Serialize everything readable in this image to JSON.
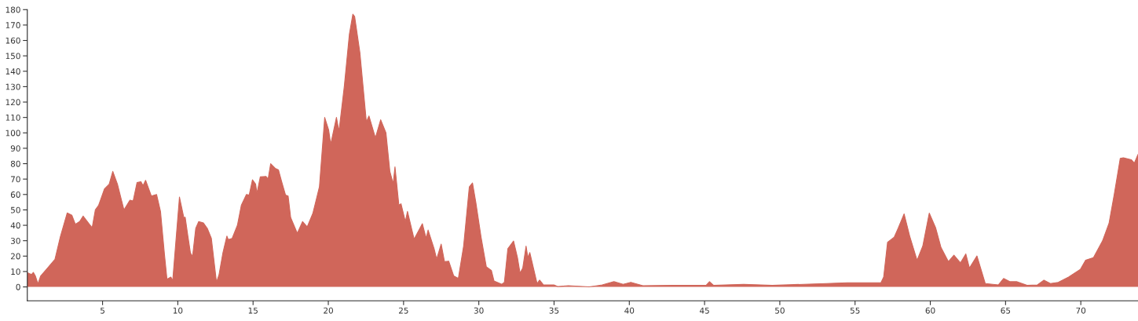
{
  "chart_data": {
    "type": "area",
    "x": [
      0,
      0.28,
      0.4,
      0.54,
      0.71,
      0.88,
      1.32,
      1.84,
      2.18,
      2.65,
      2.96,
      3.19,
      3.48,
      3.71,
      4.12,
      4.31,
      4.52,
      4.74,
      5.13,
      5.44,
      5.68,
      5.99,
      6.42,
      6.82,
      7.03,
      7.29,
      7.55,
      7.69,
      7.86,
      8.24,
      8.59,
      8.85,
      9.11,
      9.28,
      9.54,
      9.66,
      10.11,
      10.4,
      10.49,
      10.67,
      10.84,
      10.98,
      11.19,
      11.39,
      11.7,
      11.96,
      12.23,
      12.57,
      12.74,
      13.0,
      13.26,
      13.35,
      13.61,
      13.96,
      14.22,
      14.56,
      14.74,
      14.96,
      15.17,
      15.26,
      15.48,
      15.86,
      16.0,
      16.17,
      16.47,
      16.69,
      16.9,
      17.16,
      17.33,
      17.5,
      17.94,
      18.29,
      18.6,
      18.98,
      19.41,
      19.76,
      20.02,
      20.16,
      20.54,
      20.71,
      21.06,
      21.4,
      21.63,
      21.75,
      22.1,
      22.53,
      22.7,
      23.13,
      23.48,
      23.83,
      24.09,
      24.31,
      24.43,
      24.69,
      24.83,
      25.12,
      25.26,
      25.7,
      26.25,
      26.5,
      26.63,
      27.03,
      27.2,
      27.5,
      27.72,
      28.0,
      28.33,
      28.64,
      28.99,
      29.37,
      29.58,
      29.8,
      30.15,
      30.5,
      30.84,
      31.01,
      31.53,
      31.7,
      31.93,
      32.31,
      32.57,
      32.74,
      32.92,
      33.14,
      33.26,
      33.39,
      33.87,
      34.04,
      34.3,
      34.99,
      35.26,
      35.95,
      37.33,
      38.2,
      38.98,
      39.59,
      40.1,
      40.9,
      42.9,
      45.1,
      45.33,
      45.6,
      47.6,
      49.5,
      53.1,
      54.47,
      56.72,
      56.9,
      57.16,
      57.6,
      57.86,
      58.26,
      58.63,
      59.12,
      59.5,
      59.93,
      60.36,
      60.71,
      61.2,
      61.57,
      62.0,
      62.36,
      62.6,
      63.1,
      63.65,
      64.52,
      64.87,
      65.3,
      65.73,
      66.43,
      67.12,
      67.55,
      67.98,
      68.5,
      69.19,
      69.97,
      70.32,
      70.84,
      71.44,
      71.88,
      72.22,
      72.62,
      72.83,
      73.35,
      73.56,
      73.8
    ],
    "values": [
      9.2,
      8,
      9.4,
      7,
      2,
      7,
      12,
      18,
      32,
      48,
      46.5,
      40.7,
      42.4,
      46,
      40.7,
      38.5,
      50,
      53,
      63.7,
      66.7,
      75,
      66.7,
      50,
      56.3,
      55.8,
      67.8,
      68.3,
      65.8,
      69.2,
      59,
      60,
      49,
      21.4,
      5,
      6.4,
      3.9,
      58.3,
      45,
      45.2,
      33,
      22,
      19.8,
      38,
      42.4,
      41.5,
      38,
      31.5,
      3,
      8,
      22.3,
      33,
      30.7,
      31.5,
      40,
      53,
      60,
      59.6,
      69.5,
      66.7,
      60.8,
      71.4,
      71.7,
      70,
      80,
      77,
      75.9,
      68.3,
      59.6,
      59,
      45,
      34.8,
      42.4,
      39,
      48,
      65,
      110,
      102,
      92.6,
      110,
      101,
      130,
      164,
      177,
      175.5,
      152,
      107,
      111,
      96.8,
      108.5,
      100,
      75,
      67,
      78,
      53,
      54,
      42.4,
      49,
      31,
      41,
      31.5,
      36.9,
      24.8,
      18,
      27.8,
      16.4,
      16.7,
      7.2,
      5.5,
      26.5,
      65,
      67.5,
      55,
      32.3,
      13,
      10.6,
      3.9,
      1.7,
      3,
      24.8,
      29.8,
      19,
      8.9,
      12.2,
      26.5,
      19,
      22.3,
      2.2,
      4.4,
      1.3,
      1.3,
      0.2,
      0.8,
      0,
      1.3,
      3.4,
      1.7,
      3,
      0.8,
      1,
      1,
      3.4,
      1,
      1.7,
      1,
      2.2,
      2.7,
      2.7,
      6.4,
      29,
      32.3,
      38,
      47.4,
      33,
      17.3,
      26.5,
      47.9,
      38.2,
      25.6,
      16.4,
      20.6,
      15.6,
      21.4,
      12.2,
      20.1,
      2.2,
      1.3,
      5.5,
      3.4,
      3.4,
      1,
      1.3,
      4.4,
      2.2,
      3,
      6.4,
      11.4,
      17.3,
      19,
      29.8,
      41.5,
      60,
      83.4,
      83.8,
      82.6,
      80.4,
      86
    ],
    "color": "#d0665a",
    "xlim": [
      0,
      73.8
    ],
    "ylim": [
      -9,
      180
    ],
    "xticks": [
      5,
      10,
      15,
      20,
      25,
      30,
      35,
      40,
      45,
      50,
      55,
      60,
      65,
      70
    ],
    "yticks": [
      0,
      10,
      20,
      30,
      40,
      50,
      60,
      70,
      80,
      90,
      100,
      110,
      120,
      130,
      140,
      150,
      160,
      170,
      180
    ],
    "grid": false
  }
}
